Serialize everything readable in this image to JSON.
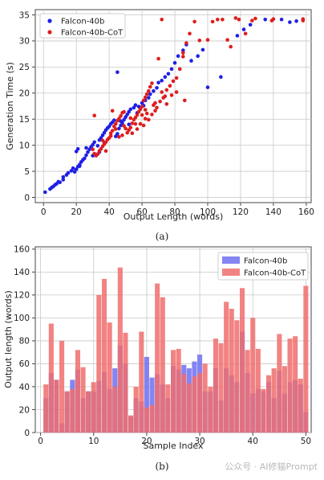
{
  "figure_a": {
    "caption": "(a)",
    "chart_data": {
      "type": "scatter",
      "xlabel": "Output Length (words)",
      "ylabel": "Generation Time (s)",
      "xlim": [
        -5,
        163
      ],
      "ylim": [
        -1,
        36
      ],
      "xticks": [
        0,
        20,
        40,
        60,
        80,
        100,
        120,
        140,
        160
      ],
      "yticks": [
        0,
        5,
        10,
        15,
        20,
        25,
        30,
        35
      ],
      "grid": true,
      "legend_position": "top-left",
      "series": [
        {
          "name": "Falcon-40b",
          "color": "#1f1fe6",
          "points": [
            [
              1,
              1
            ],
            [
              4,
              1.6
            ],
            [
              5,
              1.9
            ],
            [
              6,
              2.1
            ],
            [
              7,
              2.4
            ],
            [
              8,
              2.6
            ],
            [
              9,
              3
            ],
            [
              10,
              2.9
            ],
            [
              12,
              3.4
            ],
            [
              12,
              3.9
            ],
            [
              14,
              4.3
            ],
            [
              15,
              4.7
            ],
            [
              17,
              5.1
            ],
            [
              18,
              5.6
            ],
            [
              19,
              4.9
            ],
            [
              20,
              5.4
            ],
            [
              21,
              5.9
            ],
            [
              22,
              6.3
            ],
            [
              23,
              6.8
            ],
            [
              24,
              7.2
            ],
            [
              25,
              7.5
            ],
            [
              20,
              8.8
            ],
            [
              21,
              9.3
            ],
            [
              26,
              8.1
            ],
            [
              27,
              8.7
            ],
            [
              28,
              9.2
            ],
            [
              29,
              9.7
            ],
            [
              30,
              10.1
            ],
            [
              31,
              10.6
            ],
            [
              33,
              9.9
            ],
            [
              34,
              11
            ],
            [
              35,
              11.4
            ],
            [
              36,
              11.9
            ],
            [
              37,
              12.4
            ],
            [
              38,
              12.9
            ],
            [
              39,
              13.3
            ],
            [
              40,
              13.6
            ],
            [
              41,
              14.1
            ],
            [
              42,
              14.4
            ],
            [
              43,
              14.8
            ],
            [
              44,
              11.7
            ],
            [
              45,
              12.2
            ],
            [
              46,
              13.2
            ],
            [
              47,
              13.8
            ],
            [
              48,
              14.3
            ],
            [
              49,
              14.9
            ],
            [
              50,
              15.4
            ],
            [
              51,
              15.9
            ],
            [
              52,
              16.4
            ],
            [
              53,
              16.9
            ],
            [
              55,
              17.2
            ],
            [
              56,
              17.7
            ],
            [
              58,
              17.4
            ],
            [
              60,
              18.1
            ],
            [
              62,
              18.6
            ],
            [
              64,
              19.1
            ],
            [
              65,
              19.8
            ],
            [
              67,
              20.4
            ],
            [
              69,
              21
            ],
            [
              70,
              22
            ],
            [
              72,
              22.4
            ],
            [
              74,
              23.1
            ],
            [
              76,
              23.7
            ],
            [
              78,
              24.6
            ],
            [
              80,
              25.8
            ],
            [
              82,
              27.1
            ],
            [
              85,
              28.2
            ],
            [
              87,
              29.3
            ],
            [
              90,
              26.2
            ],
            [
              94,
              27.1
            ],
            [
              97,
              28.3
            ],
            [
              100,
              21.1
            ],
            [
              108,
              23.1
            ],
            [
              118,
              31
            ],
            [
              122,
              32.2
            ],
            [
              126,
              33.1
            ],
            [
              135,
              34.1
            ],
            [
              145,
              34.1
            ],
            [
              150,
              33.6
            ],
            [
              154,
              33.8
            ],
            [
              45,
              24
            ],
            [
              22,
              6
            ],
            [
              26,
              9.5
            ],
            [
              30,
              8
            ],
            [
              34,
              8.7
            ],
            [
              37,
              10.3
            ],
            [
              47,
              14.6
            ],
            [
              52,
              14
            ],
            [
              57,
              16.2
            ],
            [
              61,
              17.6
            ]
          ]
        },
        {
          "name": "Falcon-40b-CoT",
          "color": "#dd1e1e",
          "points": [
            [
              31,
              15.7
            ],
            [
              30,
              9.2
            ],
            [
              31,
              8.4
            ],
            [
              32,
              8
            ],
            [
              33,
              8.3
            ],
            [
              34,
              8.9
            ],
            [
              35,
              9.3
            ],
            [
              36,
              9.8
            ],
            [
              37,
              10.2
            ],
            [
              38,
              10.6
            ],
            [
              39,
              11.1
            ],
            [
              40,
              11.4
            ],
            [
              41,
              12.3
            ],
            [
              42,
              12.8
            ],
            [
              43,
              13.6
            ],
            [
              44,
              14.1
            ],
            [
              45,
              14.7
            ],
            [
              46,
              15.1
            ],
            [
              47,
              15.6
            ],
            [
              48,
              16.2
            ],
            [
              49,
              16.4
            ],
            [
              50,
              13.2
            ],
            [
              51,
              12.4
            ],
            [
              52,
              12.9
            ],
            [
              53,
              13.4
            ],
            [
              54,
              14.2
            ],
            [
              55,
              14.9
            ],
            [
              56,
              15.3
            ],
            [
              57,
              15.8
            ],
            [
              58,
              16.4
            ],
            [
              59,
              16.9
            ],
            [
              60,
              17.4
            ],
            [
              61,
              18.6
            ],
            [
              62,
              19.2
            ],
            [
              63,
              19.8
            ],
            [
              64,
              20.4
            ],
            [
              65,
              21.2
            ],
            [
              66,
              21.9
            ],
            [
              67,
              17.7
            ],
            [
              68,
              18.1
            ],
            [
              69,
              17.2
            ],
            [
              71,
              18.4
            ],
            [
              73,
              19.1
            ],
            [
              75,
              20.6
            ],
            [
              77,
              21.4
            ],
            [
              79,
              22.3
            ],
            [
              81,
              22.9
            ],
            [
              83,
              24.6
            ],
            [
              85,
              27.7
            ],
            [
              87,
              29.6
            ],
            [
              89,
              31.4
            ],
            [
              92,
              33.7
            ],
            [
              95,
              30.1
            ],
            [
              100,
              30.2
            ],
            [
              103,
              33.7
            ],
            [
              106,
              34.1
            ],
            [
              109,
              34.1
            ],
            [
              112,
              30.2
            ],
            [
              114,
              28.9
            ],
            [
              117,
              34.4
            ],
            [
              119,
              34.1
            ],
            [
              123,
              31.4
            ],
            [
              127,
              33.9
            ],
            [
              129,
              34.3
            ],
            [
              139,
              33.9
            ],
            [
              140,
              34.2
            ],
            [
              158,
              33.9
            ],
            [
              158,
              34.2
            ],
            [
              72,
              34.1
            ],
            [
              85,
              27
            ],
            [
              86,
              18.6
            ],
            [
              81,
              20.2
            ],
            [
              78,
              19.6
            ],
            [
              70,
              26.6
            ],
            [
              62,
              15.1
            ],
            [
              66,
              15.9
            ],
            [
              64,
              14.9
            ],
            [
              42,
              16.6
            ],
            [
              44,
              13.1
            ],
            [
              48,
              11.9
            ],
            [
              54,
              12.3
            ],
            [
              57,
              13.1
            ],
            [
              59,
              14.1
            ],
            [
              63,
              16.1
            ],
            [
              68,
              16.6
            ],
            [
              72,
              20.2
            ],
            [
              74,
              19.4
            ],
            [
              75,
              17.9
            ],
            [
              36,
              10.9
            ],
            [
              38,
              8.9
            ],
            [
              41,
              11.8
            ],
            [
              46,
              11.6
            ],
            [
              49,
              13.7
            ],
            [
              53,
              15.2
            ],
            [
              56,
              14.1
            ],
            [
              61,
              13.8
            ],
            [
              60,
              15.8
            ],
            [
              62,
              16.8
            ]
          ]
        }
      ]
    }
  },
  "figure_b": {
    "caption": "(b)",
    "chart_data": {
      "type": "bar",
      "xlabel": "Sample Index",
      "ylabel": "Output length (words)",
      "xlim": [
        -1,
        51
      ],
      "ylim": [
        0,
        162
      ],
      "xticks": [
        0,
        10,
        20,
        30,
        40,
        50
      ],
      "yticks": [
        0,
        20,
        40,
        60,
        80,
        100,
        120,
        140,
        160
      ],
      "grid": true,
      "legend_position": "top-right",
      "categories": [
        1,
        2,
        3,
        4,
        5,
        6,
        7,
        8,
        9,
        10,
        11,
        12,
        13,
        14,
        15,
        16,
        17,
        18,
        19,
        20,
        21,
        22,
        23,
        24,
        25,
        26,
        27,
        28,
        29,
        30,
        31,
        32,
        33,
        34,
        35,
        36,
        37,
        38,
        39,
        40,
        41,
        42,
        43,
        44,
        45,
        46,
        47,
        48,
        49,
        50
      ],
      "series": [
        {
          "name": "Falcon-40b",
          "color": "#6f6ff0",
          "alpha": 0.85,
          "values": [
            30,
            52,
            46,
            8,
            36,
            46,
            55,
            30,
            36,
            36,
            45,
            53,
            38,
            56,
            76,
            60,
            14,
            30,
            27,
            66,
            48,
            51,
            42,
            30,
            58,
            55,
            59,
            56,
            62,
            68,
            36,
            36,
            56,
            28,
            56,
            50,
            44,
            88,
            52,
            34,
            38,
            36,
            44,
            30,
            54,
            34,
            44,
            46,
            42,
            18
          ]
        },
        {
          "name": "Falcon-40b-CoT",
          "color": "#f06d6d",
          "alpha": 0.85,
          "values": [
            42,
            95,
            46,
            80,
            36,
            38,
            72,
            57,
            36,
            44,
            120,
            134,
            96,
            40,
            144,
            87,
            15,
            40,
            88,
            22,
            24,
            130,
            118,
            42,
            72,
            73,
            51,
            43,
            49,
            52,
            60,
            40,
            82,
            78,
            114,
            108,
            98,
            126,
            72,
            100,
            73,
            38,
            50,
            56,
            86,
            58,
            82,
            84,
            47,
            128
          ]
        }
      ]
    }
  },
  "watermark": "公众号 · AI修猫Prompt"
}
